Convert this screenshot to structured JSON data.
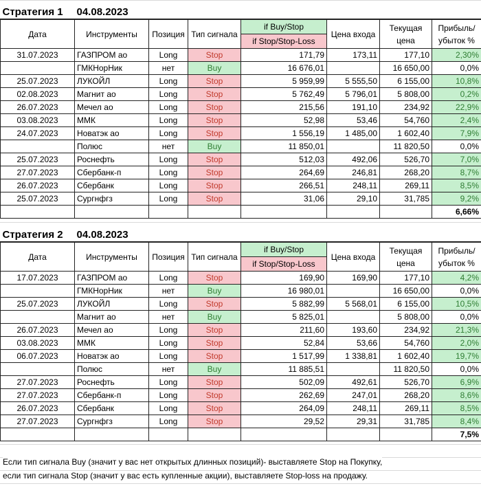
{
  "headers": {
    "date": "Дата",
    "instrument": "Инструменты",
    "position": "Позиция",
    "signal": "Тип сигнала",
    "if_buy": "if Buy/Stop",
    "if_stop": "if Stop/Stop-Loss",
    "entry": "Цена входа",
    "current": "Текущая цена",
    "profit": "Прибыль/ убыток %"
  },
  "strategies": [
    {
      "title": "Стратегия 1",
      "date": "04.08.2023",
      "total": "6,66%",
      "rows": [
        [
          "31.07.2023",
          "ГАЗПРОМ ао",
          "Long",
          "Stop",
          "171,79",
          "173,11",
          "177,10",
          "2,30%"
        ],
        [
          "",
          "ГМКНорНик",
          "нет",
          "Buy",
          "16 676,01",
          "",
          "16 650,00",
          "0,0%"
        ],
        [
          "25.07.2023",
          "ЛУКОЙЛ",
          "Long",
          "Stop",
          "5 959,99",
          "5 555,50",
          "6 155,00",
          "10,8%"
        ],
        [
          "02.08.2023",
          "Магнит ао",
          "Long",
          "Stop",
          "5 762,49",
          "5 796,01",
          "5 808,00",
          "0,2%"
        ],
        [
          "26.07.2023",
          "Мечел ао",
          "Long",
          "Stop",
          "215,56",
          "191,10",
          "234,92",
          "22,9%"
        ],
        [
          "03.08.2023",
          "ММК",
          "Long",
          "Stop",
          "52,98",
          "53,46",
          "54,760",
          "2,4%"
        ],
        [
          "24.07.2023",
          "Новатэк ао",
          "Long",
          "Stop",
          "1 556,19",
          "1 485,00",
          "1 602,40",
          "7,9%"
        ],
        [
          "",
          "Полюс",
          "нет",
          "Buy",
          "11 850,01",
          "",
          "11 820,50",
          "0,0%"
        ],
        [
          "25.07.2023",
          "Роснефть",
          "Long",
          "Stop",
          "512,03",
          "492,06",
          "526,70",
          "7,0%"
        ],
        [
          "27.07.2023",
          "Сбербанк-п",
          "Long",
          "Stop",
          "264,69",
          "246,81",
          "268,20",
          "8,7%"
        ],
        [
          "26.07.2023",
          "Сбербанк",
          "Long",
          "Stop",
          "266,51",
          "248,11",
          "269,11",
          "8,5%"
        ],
        [
          "25.07.2023",
          "Сургнфгз",
          "Long",
          "Stop",
          "31,06",
          "29,10",
          "31,785",
          "9,2%"
        ]
      ]
    },
    {
      "title": "Стратегия 2",
      "date": "04.08.2023",
      "total": "7,5%",
      "rows": [
        [
          "17.07.2023",
          "ГАЗПРОМ ао",
          "Long",
          "Stop",
          "169,90",
          "169,90",
          "177,10",
          "4,2%"
        ],
        [
          "",
          "ГМКНорНик",
          "нет",
          "Buy",
          "16 980,01",
          "",
          "16 650,00",
          "0,0%"
        ],
        [
          "25.07.2023",
          "ЛУКОЙЛ",
          "Long",
          "Stop",
          "5 882,99",
          "5 568,01",
          "6 155,00",
          "10,5%"
        ],
        [
          "",
          "Магнит ао",
          "нет",
          "Buy",
          "5 825,01",
          "",
          "5 808,00",
          "0,0%"
        ],
        [
          "26.07.2023",
          "Мечел ао",
          "Long",
          "Stop",
          "211,60",
          "193,60",
          "234,92",
          "21,3%"
        ],
        [
          "03.08.2023",
          "ММК",
          "Long",
          "Stop",
          "52,84",
          "53,66",
          "54,760",
          "2,0%"
        ],
        [
          "06.07.2023",
          "Новатэк ао",
          "Long",
          "Stop",
          "1 517,99",
          "1 338,81",
          "1 602,40",
          "19,7%"
        ],
        [
          "",
          "Полюс",
          "нет",
          "Buy",
          "11 885,51",
          "",
          "11 820,50",
          "0,0%"
        ],
        [
          "27.07.2023",
          "Роснефть",
          "Long",
          "Stop",
          "502,09",
          "492,61",
          "526,70",
          "6,9%"
        ],
        [
          "27.07.2023",
          "Сбербанк-п",
          "Long",
          "Stop",
          "262,69",
          "247,01",
          "268,20",
          "8,6%"
        ],
        [
          "26.07.2023",
          "Сбербанк",
          "Long",
          "Stop",
          "264,09",
          "248,11",
          "269,11",
          "8,5%"
        ],
        [
          "27.07.2023",
          "Сургнфгз",
          "Long",
          "Stop",
          "29,52",
          "29,31",
          "31,785",
          "8,4%"
        ]
      ]
    }
  ],
  "notes": [
    "Если тип сигнала Buy (значит у вас нет открытых длинных позиций)- выставляете Stop на Покупку,",
    "если тип сигнала Stop (значит у вас есть купленные акции), выставляете Stop-loss на продажу."
  ]
}
